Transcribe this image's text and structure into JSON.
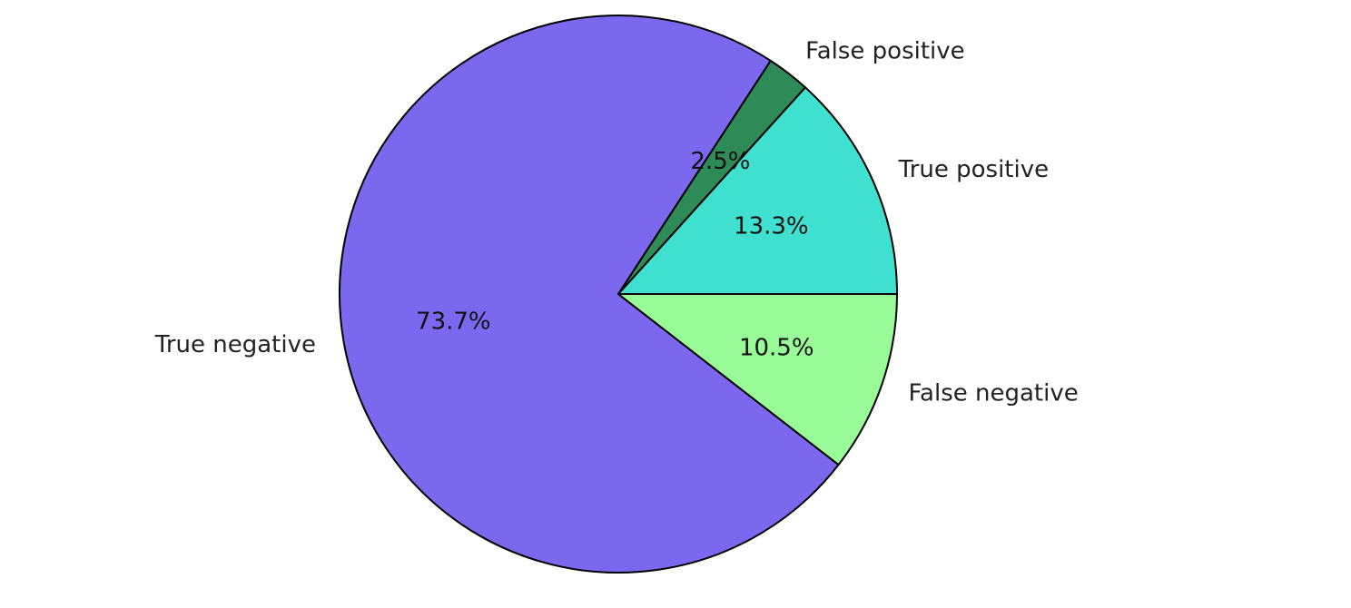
{
  "chart_data": {
    "type": "pie",
    "title": "",
    "start_angle_deg": 0,
    "direction": "counterclockwise",
    "slices": [
      {
        "label": "True positive",
        "value": 13.3,
        "pct_text": "13.3%",
        "color": "#40e0d0"
      },
      {
        "label": "False positive",
        "value": 2.5,
        "pct_text": "2.5%",
        "color": "#2e8b57"
      },
      {
        "label": "True negative",
        "value": 73.7,
        "pct_text": "73.7%",
        "color": "#7b68ee"
      },
      {
        "label": "False negative",
        "value": 10.5,
        "pct_text": "10.5%",
        "color": "#98fb98"
      }
    ],
    "edge_color": "#000000"
  }
}
